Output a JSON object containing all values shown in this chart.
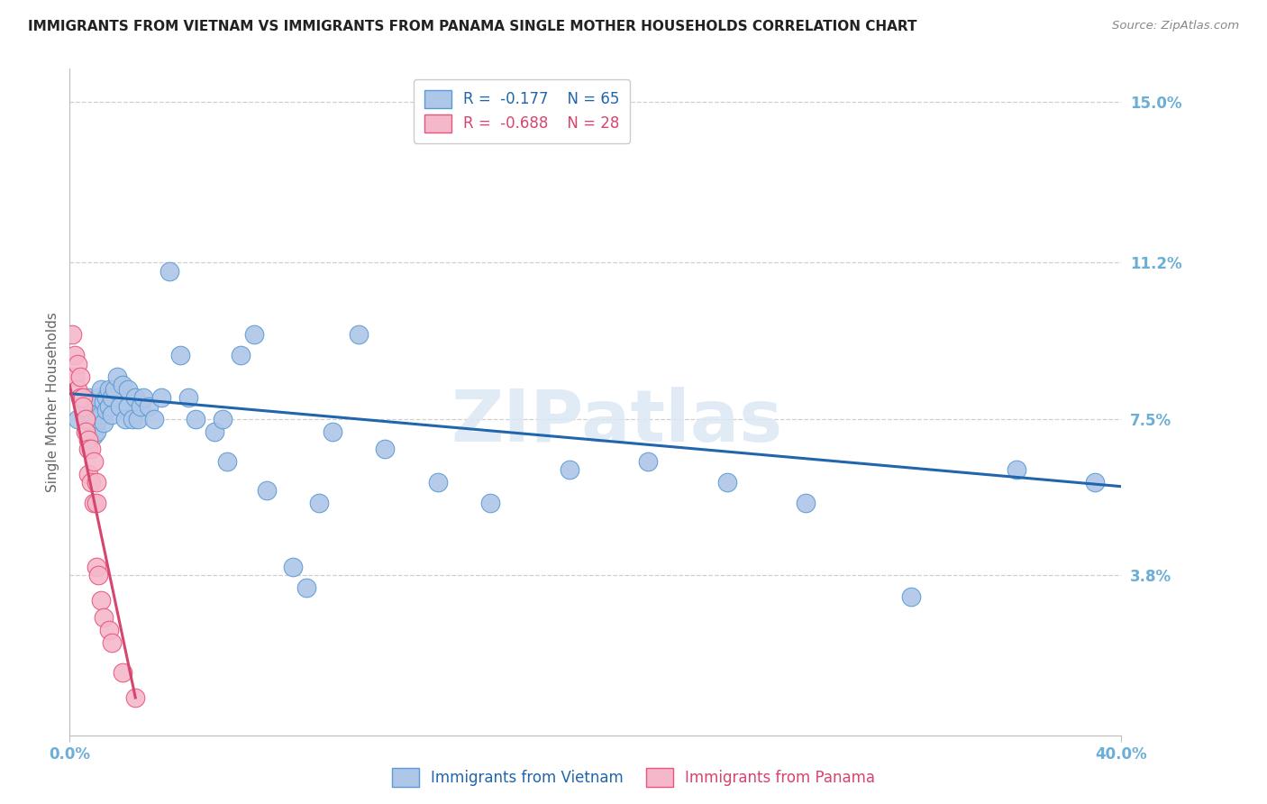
{
  "title": "IMMIGRANTS FROM VIETNAM VS IMMIGRANTS FROM PANAMA SINGLE MOTHER HOUSEHOLDS CORRELATION CHART",
  "source": "Source: ZipAtlas.com",
  "ylabel": "Single Mother Households",
  "ytick_values": [
    0.0,
    0.038,
    0.075,
    0.112,
    0.15
  ],
  "ytick_labels": [
    "",
    "3.8%",
    "7.5%",
    "11.2%",
    "15.0%"
  ],
  "xtick_values": [
    0.0,
    0.4
  ],
  "xtick_labels": [
    "0.0%",
    "40.0%"
  ],
  "xlim": [
    0.0,
    0.4
  ],
  "ylim": [
    0.0,
    0.158
  ],
  "legend_R_vietnam": "-0.177",
  "legend_N_vietnam": "65",
  "legend_R_panama": "-0.688",
  "legend_N_panama": "28",
  "color_vietnam_fill": "#aec6e8",
  "color_panama_fill": "#f5b8cb",
  "color_vietnam_edge": "#5b9bd5",
  "color_panama_edge": "#e8547a",
  "color_vietnam_line": "#2166ac",
  "color_panama_line": "#d6456e",
  "color_axis_ticks": "#6baed6",
  "color_watermark": "#dce8f5",
  "color_grid": "#d0d0d0",
  "background_color": "#ffffff",
  "vietnam_x": [
    0.003,
    0.005,
    0.006,
    0.007,
    0.007,
    0.008,
    0.008,
    0.009,
    0.009,
    0.009,
    0.01,
    0.01,
    0.01,
    0.011,
    0.011,
    0.012,
    0.012,
    0.013,
    0.013,
    0.014,
    0.014,
    0.015,
    0.015,
    0.016,
    0.016,
    0.017,
    0.018,
    0.019,
    0.02,
    0.021,
    0.022,
    0.022,
    0.024,
    0.025,
    0.026,
    0.027,
    0.028,
    0.03,
    0.032,
    0.035,
    0.038,
    0.042,
    0.045,
    0.048,
    0.055,
    0.058,
    0.06,
    0.065,
    0.07,
    0.075,
    0.085,
    0.09,
    0.095,
    0.1,
    0.11,
    0.12,
    0.14,
    0.16,
    0.19,
    0.22,
    0.25,
    0.28,
    0.32,
    0.36,
    0.39
  ],
  "vietnam_y": [
    0.075,
    0.078,
    0.075,
    0.08,
    0.076,
    0.079,
    0.074,
    0.075,
    0.073,
    0.071,
    0.078,
    0.076,
    0.072,
    0.08,
    0.075,
    0.082,
    0.076,
    0.079,
    0.074,
    0.08,
    0.077,
    0.082,
    0.078,
    0.08,
    0.076,
    0.082,
    0.085,
    0.078,
    0.083,
    0.075,
    0.082,
    0.078,
    0.075,
    0.08,
    0.075,
    0.078,
    0.08,
    0.078,
    0.075,
    0.08,
    0.11,
    0.09,
    0.08,
    0.075,
    0.072,
    0.075,
    0.065,
    0.09,
    0.095,
    0.058,
    0.04,
    0.035,
    0.055,
    0.072,
    0.095,
    0.068,
    0.06,
    0.055,
    0.063,
    0.065,
    0.06,
    0.055,
    0.033,
    0.063,
    0.06
  ],
  "panama_x": [
    0.001,
    0.002,
    0.002,
    0.003,
    0.003,
    0.004,
    0.004,
    0.005,
    0.005,
    0.006,
    0.006,
    0.007,
    0.007,
    0.007,
    0.008,
    0.008,
    0.009,
    0.009,
    0.01,
    0.01,
    0.01,
    0.011,
    0.012,
    0.013,
    0.015,
    0.016,
    0.02,
    0.025
  ],
  "panama_y": [
    0.095,
    0.09,
    0.085,
    0.088,
    0.082,
    0.085,
    0.08,
    0.08,
    0.078,
    0.075,
    0.072,
    0.07,
    0.068,
    0.062,
    0.068,
    0.06,
    0.065,
    0.055,
    0.06,
    0.055,
    0.04,
    0.038,
    0.032,
    0.028,
    0.025,
    0.022,
    0.015,
    0.009
  ],
  "vietnam_line_x": [
    0.0,
    0.4
  ],
  "vietnam_line_y": [
    0.081,
    0.059
  ],
  "panama_line_x": [
    0.0,
    0.025
  ],
  "panama_line_y": [
    0.083,
    0.009
  ]
}
